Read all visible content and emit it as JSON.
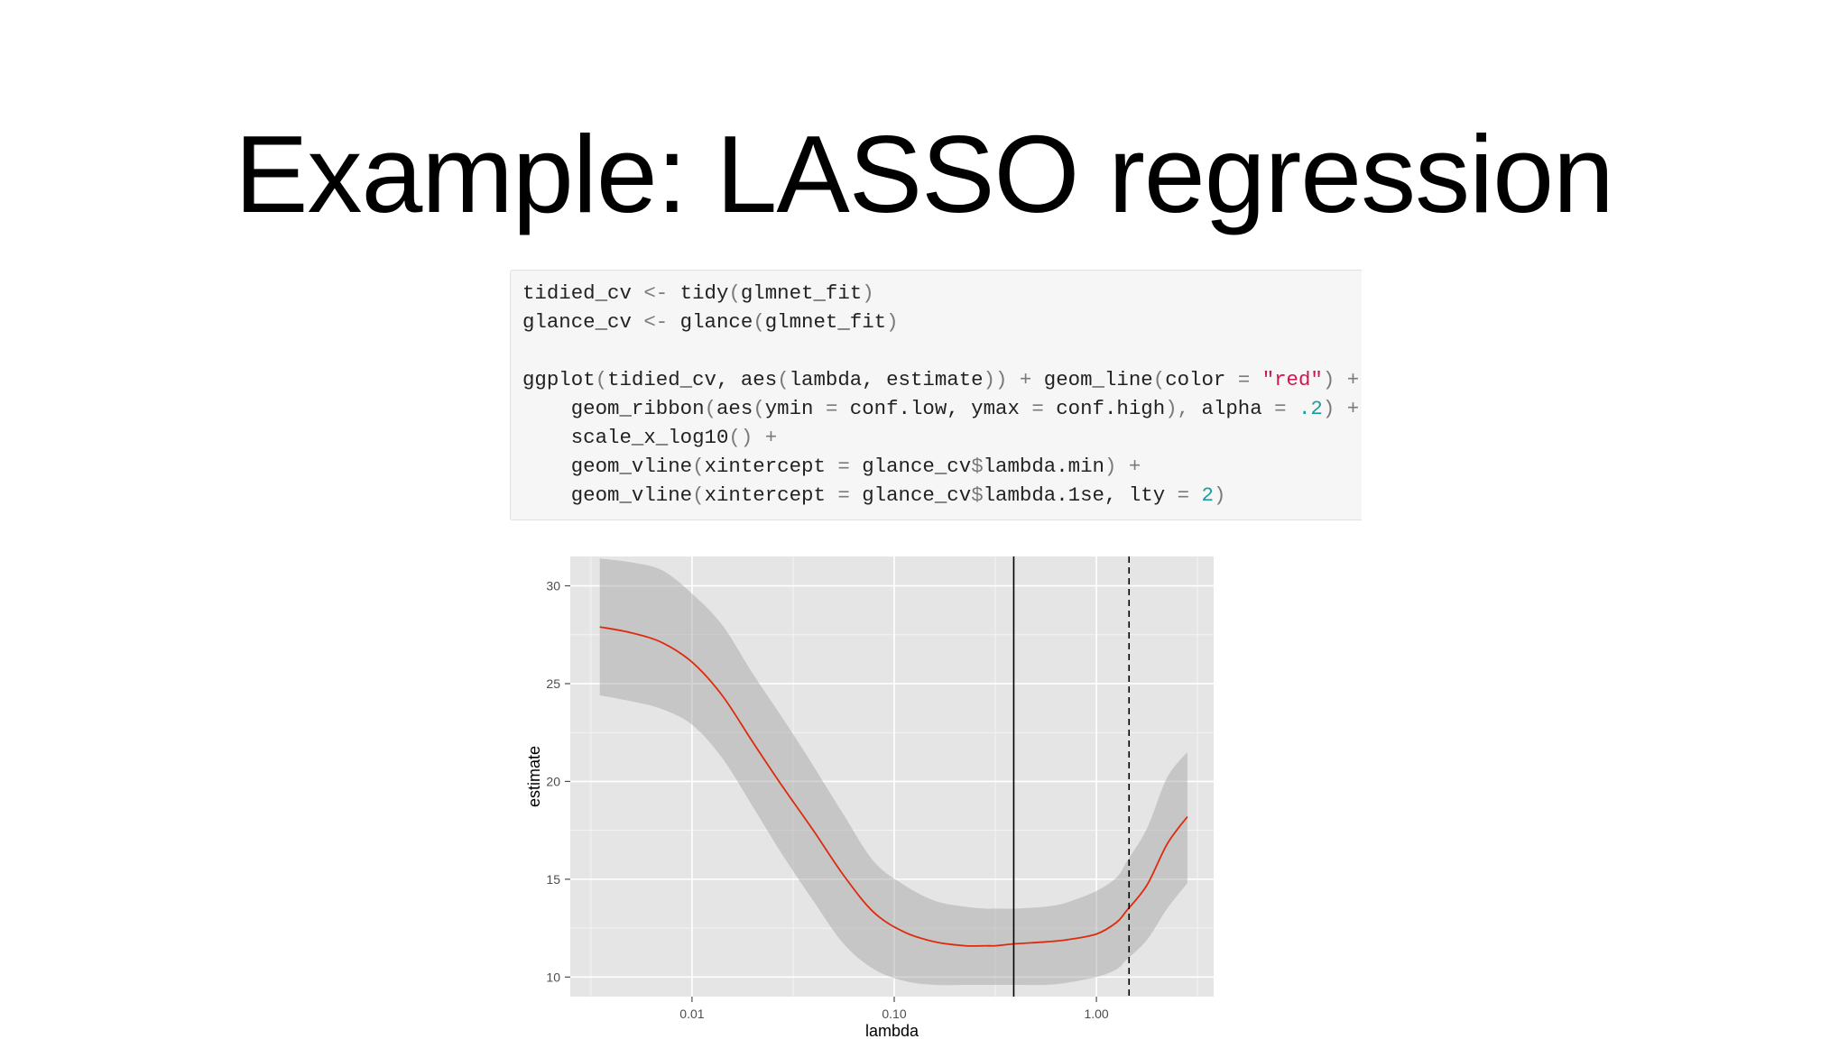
{
  "slide": {
    "title": "Example: LASSO regression"
  },
  "code": {
    "lines": [
      [
        [
          "tidied_cv ",
          "t"
        ],
        [
          "<-",
          "op"
        ],
        [
          " tidy",
          "t"
        ],
        [
          "(",
          "op"
        ],
        [
          "glmnet_fit",
          "t"
        ],
        [
          ")",
          "op"
        ]
      ],
      [
        [
          "glance_cv ",
          "t"
        ],
        [
          "<-",
          "op"
        ],
        [
          " glance",
          "t"
        ],
        [
          "(",
          "op"
        ],
        [
          "glmnet_fit",
          "t"
        ],
        [
          ")",
          "op"
        ]
      ],
      [],
      [
        [
          "ggplot",
          "t"
        ],
        [
          "(",
          "op"
        ],
        [
          "tidied_cv, aes",
          "t"
        ],
        [
          "(",
          "op"
        ],
        [
          "lambda, estimate",
          "t"
        ],
        [
          ")) +",
          "op"
        ],
        [
          " geom_line",
          "t"
        ],
        [
          "(",
          "op"
        ],
        [
          "color ",
          "t"
        ],
        [
          "=",
          "op"
        ],
        [
          " ",
          "t"
        ],
        [
          "\"red\"",
          "str"
        ],
        [
          ") +",
          "op"
        ]
      ],
      [
        [
          "    geom_ribbon",
          "t"
        ],
        [
          "(",
          "op"
        ],
        [
          "aes",
          "t"
        ],
        [
          "(",
          "op"
        ],
        [
          "ymin ",
          "t"
        ],
        [
          "=",
          "op"
        ],
        [
          " conf.low, ymax ",
          "t"
        ],
        [
          "=",
          "op"
        ],
        [
          " conf.high",
          "t"
        ],
        [
          "),",
          "op"
        ],
        [
          " alpha ",
          "t"
        ],
        [
          "=",
          "op"
        ],
        [
          " ",
          "t"
        ],
        [
          ".2",
          "num"
        ],
        [
          ") +",
          "op"
        ]
      ],
      [
        [
          "    scale_x_log10",
          "t"
        ],
        [
          "() +",
          "op"
        ]
      ],
      [
        [
          "    geom_vline",
          "t"
        ],
        [
          "(",
          "op"
        ],
        [
          "xintercept ",
          "t"
        ],
        [
          "=",
          "op"
        ],
        [
          " glance_cv",
          "t"
        ],
        [
          "$",
          "op"
        ],
        [
          "lambda.min",
          "t"
        ],
        [
          ") +",
          "op"
        ]
      ],
      [
        [
          "    geom_vline",
          "t"
        ],
        [
          "(",
          "op"
        ],
        [
          "xintercept ",
          "t"
        ],
        [
          "=",
          "op"
        ],
        [
          " glance_cv",
          "t"
        ],
        [
          "$",
          "op"
        ],
        [
          "lambda.1se, lty ",
          "t"
        ],
        [
          "=",
          "op"
        ],
        [
          " ",
          "t"
        ],
        [
          "2",
          "num"
        ],
        [
          ")",
          "op"
        ]
      ]
    ]
  },
  "chart_data": {
    "type": "line",
    "xlabel": "lambda",
    "ylabel": "estimate",
    "x_scale": "log10",
    "xlim": [
      0.0025,
      3.8
    ],
    "ylim": [
      9.0,
      31.5
    ],
    "x_ticks": [
      0.01,
      0.1,
      1.0
    ],
    "x_tick_labels": [
      "0.01",
      "0.10",
      "1.00"
    ],
    "y_ticks": [
      10,
      15,
      20,
      25,
      30
    ],
    "y_tick_labels": [
      "10",
      "15",
      "20",
      "25",
      "30"
    ],
    "grid": true,
    "colors": {
      "panel": "#e5e5e5",
      "grid": "#ffffff",
      "line": "#dd2b0e",
      "ribbon": "#9b9b9b",
      "vline": "#000000"
    },
    "series": [
      {
        "x": [
          0.0035,
          0.005,
          0.0071,
          0.01,
          0.0141,
          0.02,
          0.0282,
          0.0398,
          0.0562,
          0.0794,
          0.1122,
          0.1585,
          0.2239,
          0.2818,
          0.3162,
          0.3981,
          0.5623,
          0.7079,
          1.0,
          1.2589,
          1.4125,
          1.7783,
          2.2387,
          2.8184
        ],
        "estimate": [
          27.9,
          27.6,
          27.1,
          26.1,
          24.4,
          22.0,
          19.7,
          17.5,
          15.2,
          13.3,
          12.3,
          11.8,
          11.6,
          11.6,
          11.6,
          11.7,
          11.8,
          11.9,
          12.2,
          12.8,
          13.4,
          14.7,
          16.8,
          18.2
        ],
        "conf_low": [
          24.4,
          24.1,
          23.7,
          22.9,
          21.2,
          18.7,
          16.2,
          13.9,
          11.7,
          10.4,
          9.8,
          9.6,
          9.6,
          9.6,
          9.6,
          9.6,
          9.6,
          9.7,
          10.0,
          10.4,
          10.9,
          11.9,
          13.5,
          14.8
        ],
        "conf_high": [
          31.4,
          31.2,
          30.8,
          29.6,
          28.0,
          25.5,
          23.2,
          20.8,
          18.3,
          15.9,
          14.7,
          13.9,
          13.6,
          13.5,
          13.5,
          13.5,
          13.6,
          13.8,
          14.4,
          15.1,
          15.9,
          17.6,
          20.2,
          21.5
        ]
      }
    ],
    "vlines": [
      {
        "x": 0.39,
        "linetype": "solid"
      },
      {
        "x": 1.45,
        "linetype": "dashed"
      }
    ]
  }
}
